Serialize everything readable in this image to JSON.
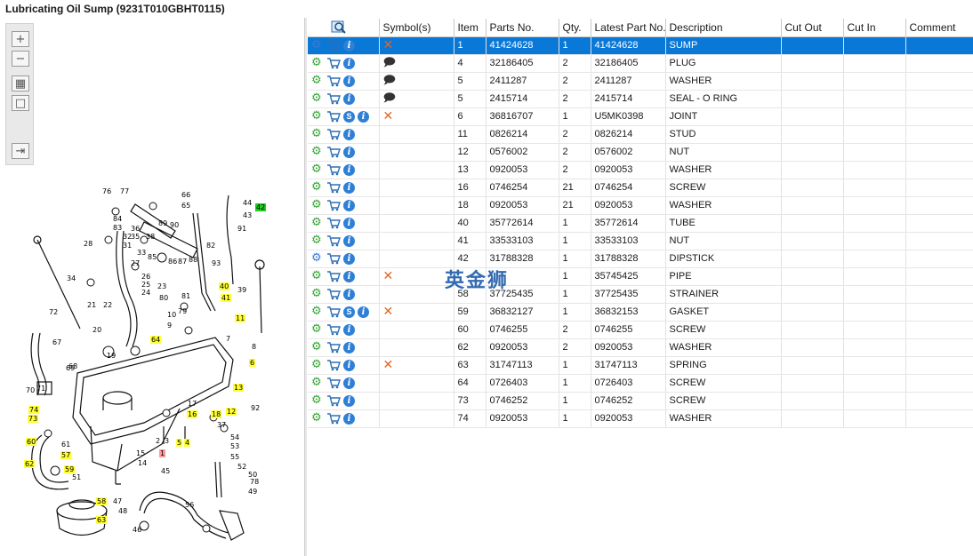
{
  "window": {
    "title": "Lubricating Oil Sump (9231T010GBHT0115)"
  },
  "toolbar": {
    "zoom_in": "+",
    "zoom_out": "−",
    "fit": "▦",
    "actual": "□",
    "export": "⇥"
  },
  "diagram": {
    "callouts": [
      {
        "label": "76"
      },
      {
        "label": "77"
      },
      {
        "label": "66"
      },
      {
        "label": "65"
      },
      {
        "label": "44"
      },
      {
        "label": "43"
      },
      {
        "label": "42",
        "hl": "green"
      },
      {
        "label": "84"
      },
      {
        "label": "83"
      },
      {
        "label": "36"
      },
      {
        "label": "35"
      },
      {
        "label": "89"
      },
      {
        "label": "90"
      },
      {
        "label": "91"
      },
      {
        "label": "32"
      },
      {
        "label": "31"
      },
      {
        "label": "38"
      },
      {
        "label": "28"
      },
      {
        "label": "33"
      },
      {
        "label": "27"
      },
      {
        "label": "85"
      },
      {
        "label": "86"
      },
      {
        "label": "87"
      },
      {
        "label": "88"
      },
      {
        "label": "82"
      },
      {
        "label": "93"
      },
      {
        "label": "34"
      },
      {
        "label": "26"
      },
      {
        "label": "25"
      },
      {
        "label": "24"
      },
      {
        "label": "23"
      },
      {
        "label": "80"
      },
      {
        "label": "81"
      },
      {
        "label": "79"
      },
      {
        "label": "40",
        "hl": "yellow"
      },
      {
        "label": "41",
        "hl": "yellow"
      },
      {
        "label": "39"
      },
      {
        "label": "72"
      },
      {
        "label": "21"
      },
      {
        "label": "22"
      },
      {
        "label": "10"
      },
      {
        "label": "9"
      },
      {
        "label": "11",
        "hl": "yellow"
      },
      {
        "label": "20"
      },
      {
        "label": "67"
      },
      {
        "label": "64",
        "hl": "yellow"
      },
      {
        "label": "7"
      },
      {
        "label": "8"
      },
      {
        "label": "19"
      },
      {
        "label": "69"
      },
      {
        "label": "68"
      },
      {
        "label": "6",
        "hl": "yellow"
      },
      {
        "label": "70"
      },
      {
        "label": "71"
      },
      {
        "label": "13",
        "hl": "yellow"
      },
      {
        "label": "17"
      },
      {
        "label": "16",
        "hl": "yellow"
      },
      {
        "label": "18",
        "hl": "yellow"
      },
      {
        "label": "12",
        "hl": "yellow"
      },
      {
        "label": "92"
      },
      {
        "label": "74",
        "hl": "yellow"
      },
      {
        "label": "73",
        "hl": "yellow"
      },
      {
        "label": "37"
      },
      {
        "label": "2"
      },
      {
        "label": "3"
      },
      {
        "label": "5",
        "hl": "yellow"
      },
      {
        "label": "4",
        "hl": "yellow"
      },
      {
        "label": "60",
        "hl": "yellow"
      },
      {
        "label": "61"
      },
      {
        "label": "1",
        "hl": "red"
      },
      {
        "label": "15"
      },
      {
        "label": "54"
      },
      {
        "label": "53"
      },
      {
        "label": "62",
        "hl": "yellow"
      },
      {
        "label": "57",
        "hl": "yellow"
      },
      {
        "label": "59",
        "hl": "yellow"
      },
      {
        "label": "14"
      },
      {
        "label": "55"
      },
      {
        "label": "52"
      },
      {
        "label": "45"
      },
      {
        "label": "50"
      },
      {
        "label": "51"
      },
      {
        "label": "78"
      },
      {
        "label": "49"
      },
      {
        "label": "58",
        "hl": "yellow"
      },
      {
        "label": "47"
      },
      {
        "label": "48"
      },
      {
        "label": "56"
      },
      {
        "label": "63",
        "hl": "yellow"
      },
      {
        "label": "46"
      }
    ]
  },
  "table": {
    "headers": [
      "",
      "Symbol(s)",
      "Item",
      "Parts No.",
      "Qty.",
      "Latest Part No.",
      "Description",
      "Cut Out",
      "Cut In",
      "Comment"
    ],
    "rows": [
      {
        "sym": "x",
        "s": false,
        "gear": "multi",
        "item": "1",
        "part": "41424628",
        "qty": "1",
        "latest": "41424628",
        "desc": "SUMP",
        "selected": true
      },
      {
        "sym": "note",
        "s": false,
        "gear": "single",
        "item": "4",
        "part": "32186405",
        "qty": "2",
        "latest": "32186405",
        "desc": "PLUG"
      },
      {
        "sym": "note",
        "s": false,
        "gear": "single",
        "item": "5",
        "part": "2411287",
        "qty": "2",
        "latest": "2411287",
        "desc": "WASHER"
      },
      {
        "sym": "note",
        "s": false,
        "gear": "single",
        "item": "5",
        "part": "2415714",
        "qty": "2",
        "latest": "2415714",
        "desc": "SEAL - O RING"
      },
      {
        "sym": "x",
        "s": true,
        "gear": "single",
        "item": "6",
        "part": "36816707",
        "qty": "1",
        "latest": "U5MK0398",
        "desc": "JOINT"
      },
      {
        "sym": "",
        "s": false,
        "gear": "single",
        "item": "11",
        "part": "0826214",
        "qty": "2",
        "latest": "0826214",
        "desc": "STUD"
      },
      {
        "sym": "",
        "s": false,
        "gear": "single",
        "item": "12",
        "part": "0576002",
        "qty": "2",
        "latest": "0576002",
        "desc": "NUT"
      },
      {
        "sym": "",
        "s": false,
        "gear": "single",
        "item": "13",
        "part": "0920053",
        "qty": "2",
        "latest": "0920053",
        "desc": "WASHER"
      },
      {
        "sym": "",
        "s": false,
        "gear": "single",
        "item": "16",
        "part": "0746254",
        "qty": "21",
        "latest": "0746254",
        "desc": "SCREW"
      },
      {
        "sym": "",
        "s": false,
        "gear": "single",
        "item": "18",
        "part": "0920053",
        "qty": "21",
        "latest": "0920053",
        "desc": "WASHER"
      },
      {
        "sym": "",
        "s": false,
        "gear": "single",
        "item": "40",
        "part": "35772614",
        "qty": "1",
        "latest": "35772614",
        "desc": "TUBE"
      },
      {
        "sym": "",
        "s": false,
        "gear": "single",
        "item": "41",
        "part": "33533103",
        "qty": "1",
        "latest": "33533103",
        "desc": "NUT"
      },
      {
        "sym": "",
        "s": false,
        "gear": "multi",
        "item": "42",
        "part": "31788328",
        "qty": "1",
        "latest": "31788328",
        "desc": "DIPSTICK"
      },
      {
        "sym": "x",
        "s": false,
        "gear": "single",
        "item": "",
        "part": "",
        "qty": "1",
        "latest": "35745425",
        "desc": "PIPE"
      },
      {
        "sym": "",
        "s": false,
        "gear": "single",
        "item": "58",
        "part": "37725435",
        "qty": "1",
        "latest": "37725435",
        "desc": "STRAINER"
      },
      {
        "sym": "x",
        "s": true,
        "gear": "single",
        "item": "59",
        "part": "36832127",
        "qty": "1",
        "latest": "36832153",
        "desc": "GASKET"
      },
      {
        "sym": "",
        "s": false,
        "gear": "single",
        "item": "60",
        "part": "0746255",
        "qty": "2",
        "latest": "0746255",
        "desc": "SCREW"
      },
      {
        "sym": "",
        "s": false,
        "gear": "single",
        "item": "62",
        "part": "0920053",
        "qty": "2",
        "latest": "0920053",
        "desc": "WASHER"
      },
      {
        "sym": "x",
        "s": false,
        "gear": "single",
        "item": "63",
        "part": "31747113",
        "qty": "1",
        "latest": "31747113",
        "desc": "SPRING"
      },
      {
        "sym": "",
        "s": false,
        "gear": "single",
        "item": "64",
        "part": "0726403",
        "qty": "1",
        "latest": "0726403",
        "desc": "SCREW"
      },
      {
        "sym": "",
        "s": false,
        "gear": "single",
        "item": "73",
        "part": "0746252",
        "qty": "1",
        "latest": "0746252",
        "desc": "SCREW"
      },
      {
        "sym": "",
        "s": false,
        "gear": "single",
        "item": "74",
        "part": "0920053",
        "qty": "1",
        "latest": "0920053",
        "desc": "WASHER"
      }
    ]
  },
  "watermark": "英金狮"
}
